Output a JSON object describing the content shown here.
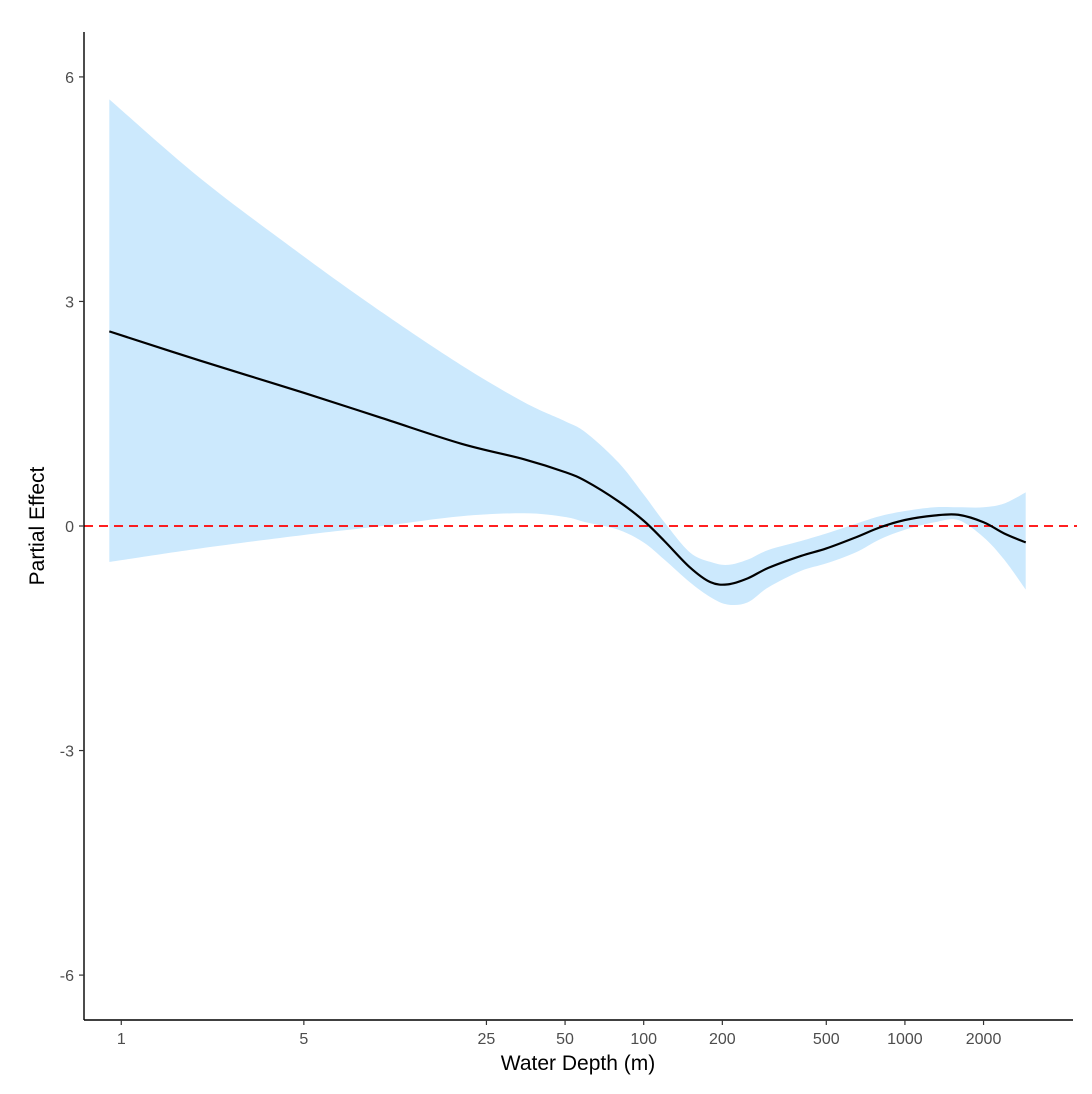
{
  "chart_data": {
    "type": "line",
    "title": "",
    "xlabel": "Water Depth (m)",
    "ylabel": "Partial Effect",
    "x_scale": "log10",
    "xlim": [
      0.72,
      4400
    ],
    "ylim": [
      -6.6,
      6.6
    ],
    "x_ticks": [
      1,
      5,
      25,
      50,
      100,
      200,
      500,
      1000,
      2000
    ],
    "x_tick_labels": [
      "1",
      "5",
      "25",
      "50",
      "100",
      "200",
      "500",
      "1000",
      "2000"
    ],
    "y_ticks": [
      6,
      3,
      0,
      -3,
      -6
    ],
    "y_tick_labels": [
      "6",
      "3",
      "0",
      "-3",
      "-6"
    ],
    "grid": false,
    "legend": "none",
    "reference_line": {
      "y": 0,
      "style": "dashed",
      "color": "#ff0000"
    },
    "series": [
      {
        "type": "line",
        "color": "#000000",
        "x": [
          0.9,
          2,
          5,
          10,
          20,
          35,
          50,
          60,
          80,
          100,
          120,
          150,
          180,
          210,
          250,
          300,
          400,
          500,
          650,
          800,
          1000,
          1300,
          1600,
          2000,
          2400,
          2900
        ],
        "y": [
          2.6,
          2.21,
          1.78,
          1.44,
          1.1,
          0.89,
          0.72,
          0.6,
          0.33,
          0.07,
          -0.2,
          -0.55,
          -0.75,
          -0.78,
          -0.7,
          -0.56,
          -0.4,
          -0.3,
          -0.15,
          -0.02,
          0.08,
          0.14,
          0.15,
          0.05,
          -0.1,
          -0.22
        ]
      },
      {
        "type": "band",
        "color": "#cce9fd",
        "x": [
          0.9,
          2,
          5,
          10,
          20,
          35,
          50,
          60,
          80,
          100,
          120,
          150,
          180,
          210,
          250,
          300,
          400,
          500,
          650,
          800,
          1000,
          1300,
          1600,
          2000,
          2400,
          2900
        ],
        "upper": [
          5.7,
          4.65,
          3.6,
          2.85,
          2.15,
          1.65,
          1.4,
          1.25,
          0.85,
          0.42,
          0.05,
          -0.35,
          -0.48,
          -0.52,
          -0.45,
          -0.32,
          -0.2,
          -0.1,
          0.03,
          0.13,
          0.2,
          0.25,
          0.25,
          0.25,
          0.3,
          0.45
        ],
        "lower": [
          -0.48,
          -0.3,
          -0.12,
          0.0,
          0.13,
          0.17,
          0.12,
          0.05,
          -0.05,
          -0.22,
          -0.45,
          -0.75,
          -0.95,
          -1.05,
          -1.02,
          -0.82,
          -0.6,
          -0.5,
          -0.35,
          -0.18,
          -0.05,
          0.05,
          0.08,
          -0.15,
          -0.45,
          -0.85
        ]
      }
    ]
  }
}
